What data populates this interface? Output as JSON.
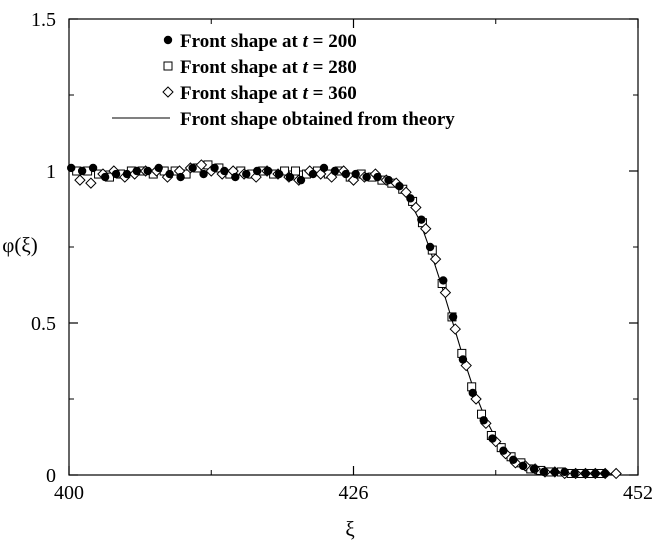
{
  "chart_data": {
    "type": "scatter",
    "title": "",
    "xlabel": "ξ",
    "ylabel": "φ(ξ)",
    "xlim": [
      400,
      452
    ],
    "ylim": [
      0,
      1.5
    ],
    "xticks": [
      400,
      426,
      452
    ],
    "yticks": [
      {
        "value": 0,
        "label": "0"
      },
      {
        "value": 0.5,
        "label": "0.5"
      },
      {
        "value": 1,
        "label": "1"
      },
      {
        "value": 1.5,
        "label": "1.5"
      }
    ],
    "minor_yticks": [
      0.25,
      0.75,
      1.25
    ],
    "minor_xticks": [
      413,
      439
    ],
    "legend_position": "top",
    "series": [
      {
        "name": "Front shape at t = 200",
        "legend_parts": [
          "Front shape at ",
          "t",
          " = 200"
        ],
        "marker": "filled-circle",
        "x": [
          400.2,
          401.2,
          402.2,
          403.3,
          404.3,
          405.3,
          406.2,
          407.2,
          408.2,
          409.2,
          410.2,
          411.3,
          412.3,
          413.3,
          414.2,
          415.2,
          416.2,
          417.2,
          418.2,
          419.2,
          420.2,
          421.2,
          422.3,
          423.3,
          424.3,
          425.3,
          426.2,
          427.2,
          428.2,
          429.2,
          430.2,
          431.2,
          432.2,
          433.0,
          434.2,
          435.1,
          436.0,
          436.9,
          437.9,
          438.7,
          439.7,
          440.6,
          441.5,
          442.5,
          443.4,
          444.4,
          445.3,
          446.2,
          447.2,
          448.1,
          449.0
        ],
        "y": [
          1.01,
          1.0,
          1.01,
          0.98,
          0.99,
          0.99,
          1.0,
          1.0,
          1.01,
          0.99,
          0.98,
          1.01,
          0.99,
          1.01,
          1.0,
          0.98,
          0.99,
          1.0,
          1.0,
          0.99,
          0.98,
          0.97,
          0.99,
          1.01,
          1.0,
          0.99,
          0.99,
          0.98,
          0.98,
          0.97,
          0.95,
          0.91,
          0.84,
          0.75,
          0.64,
          0.52,
          0.38,
          0.27,
          0.18,
          0.12,
          0.08,
          0.05,
          0.03,
          0.02,
          0.01,
          0.01,
          0.01,
          0.005,
          0.005,
          0.005,
          0.005
        ]
      },
      {
        "name": "Front shape at t = 280",
        "legend_parts": [
          "Front shape at ",
          "t",
          " = 280"
        ],
        "marker": "open-square",
        "x": [
          400.7,
          401.7,
          402.7,
          403.7,
          404.7,
          405.7,
          406.7,
          407.7,
          408.7,
          409.7,
          410.7,
          411.7,
          412.7,
          413.7,
          414.7,
          415.7,
          416.7,
          417.7,
          418.7,
          419.7,
          420.7,
          421.7,
          422.7,
          423.7,
          424.7,
          425.7,
          426.7,
          427.7,
          428.6,
          429.5,
          430.5,
          431.4,
          432.3,
          433.2,
          434.1,
          435.0,
          435.9,
          436.8,
          437.7,
          438.6,
          439.5,
          440.4,
          441.3,
          442.2,
          443.1,
          444.0,
          445.0,
          445.9,
          446.8,
          447.7,
          448.6
        ],
        "y": [
          1.0,
          1.0,
          0.99,
          0.98,
          0.99,
          1.0,
          1.0,
          0.99,
          1.0,
          1.0,
          0.99,
          1.01,
          1.02,
          1.01,
          0.99,
          1.0,
          0.99,
          1.0,
          0.99,
          1.0,
          1.0,
          0.99,
          1.0,
          0.99,
          1.0,
          0.98,
          0.99,
          0.98,
          0.97,
          0.96,
          0.94,
          0.9,
          0.83,
          0.74,
          0.63,
          0.52,
          0.4,
          0.29,
          0.2,
          0.13,
          0.09,
          0.06,
          0.04,
          0.02,
          0.015,
          0.01,
          0.01,
          0.005,
          0.005,
          0.005,
          0.005
        ]
      },
      {
        "name": "Front shape at t = 360",
        "legend_parts": [
          "Front shape at ",
          "t",
          " = 360"
        ],
        "marker": "open-diamond",
        "x": [
          401.0,
          402.0,
          403.1,
          404.1,
          405.1,
          406.0,
          407.0,
          408.0,
          409.0,
          410.1,
          411.1,
          412.1,
          413.0,
          414.0,
          415.0,
          416.0,
          417.1,
          418.1,
          419.1,
          420.1,
          421.0,
          422.0,
          423.0,
          424.0,
          425.1,
          426.0,
          427.0,
          428.0,
          429.0,
          429.9,
          430.8,
          431.7,
          432.6,
          433.5,
          434.4,
          435.3,
          436.3,
          437.2,
          438.1,
          439.0,
          439.9,
          440.8,
          441.7,
          442.6,
          443.5,
          444.4,
          445.3,
          446.3,
          447.2,
          448.1,
          449.0,
          450.0
        ],
        "y": [
          0.97,
          0.96,
          0.99,
          1.0,
          0.98,
          0.99,
          1.0,
          1.0,
          0.98,
          1.0,
          1.01,
          1.02,
          1.0,
          0.99,
          1.0,
          0.99,
          0.98,
          1.0,
          0.99,
          0.98,
          0.97,
          1.0,
          0.99,
          0.98,
          1.0,
          0.97,
          0.98,
          0.99,
          0.97,
          0.96,
          0.93,
          0.88,
          0.81,
          0.71,
          0.6,
          0.48,
          0.36,
          0.25,
          0.17,
          0.11,
          0.07,
          0.04,
          0.03,
          0.02,
          0.01,
          0.01,
          0.005,
          0.005,
          0.005,
          0.005,
          0.005,
          0.005
        ]
      },
      {
        "name": "Front shape obtained from theory",
        "legend_parts": [
          "Front shape obtained from theory"
        ],
        "marker": "line",
        "x": [
          400,
          402,
          404,
          406,
          408,
          410,
          412,
          414,
          416,
          418,
          420,
          422,
          424,
          426,
          428,
          429,
          430,
          431,
          432,
          433,
          434,
          435,
          436,
          437,
          438,
          439,
          440,
          441,
          442,
          443,
          444,
          445,
          446,
          447,
          448,
          449,
          450
        ],
        "y": [
          1.0,
          1.0,
          1.0,
          1.0,
          1.0,
          1.0,
          1.0,
          1.0,
          1.0,
          1.0,
          1.0,
          1.0,
          0.995,
          0.99,
          0.98,
          0.97,
          0.95,
          0.91,
          0.84,
          0.74,
          0.63,
          0.51,
          0.39,
          0.28,
          0.19,
          0.12,
          0.08,
          0.05,
          0.03,
          0.02,
          0.012,
          0.008,
          0.005,
          0.003,
          0.002,
          0.001,
          0.001
        ]
      }
    ]
  }
}
